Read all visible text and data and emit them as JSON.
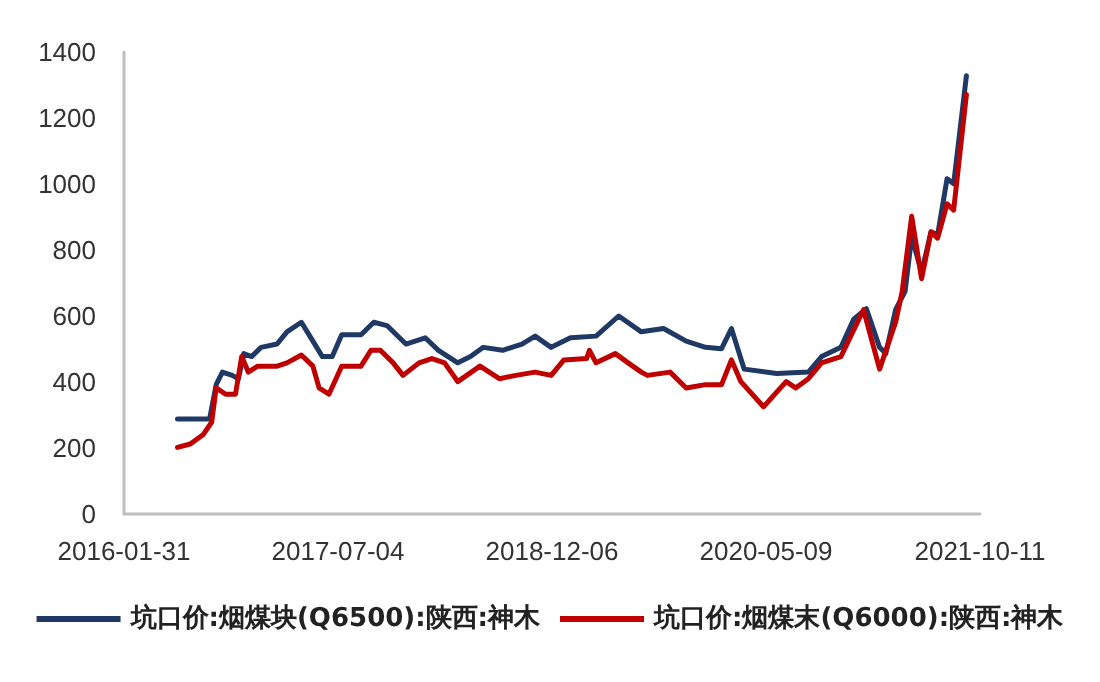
{
  "chart_data": {
    "type": "line",
    "xlim": [
      "2016-01-31",
      "2021-10-11"
    ],
    "xticks": [
      "2016-01-31",
      "2017-07-04",
      "2018-12-06",
      "2020-05-09",
      "2021-10-11"
    ],
    "ylim": [
      0,
      1400
    ],
    "yticks": [
      0,
      200,
      400,
      600,
      800,
      1000,
      1200,
      1400
    ],
    "grid": false,
    "legend": "bottom",
    "marker": "none",
    "line_style": "solid",
    "series": [
      {
        "name": "坑口价:烟煤块(Q6500):陕西:神木",
        "color": "#1f3864",
        "x": [
          "2016-06-09",
          "2016-08-26",
          "2016-09-11",
          "2016-09-26",
          "2016-10-20",
          "2016-11-04",
          "2016-11-17",
          "2016-12-06",
          "2016-12-29",
          "2017-02-06",
          "2017-03-02",
          "2017-04-06",
          "2017-05-04",
          "2017-05-27",
          "2017-06-20",
          "2017-07-13",
          "2017-08-29",
          "2017-09-29",
          "2017-10-31",
          "2017-12-16",
          "2018-02-01",
          "2018-03-05",
          "2018-04-21",
          "2018-05-22",
          "2018-06-22",
          "2018-08-08",
          "2018-09-24",
          "2018-10-26",
          "2018-12-04",
          "2019-01-20",
          "2019-03-23",
          "2019-05-17",
          "2019-07-11",
          "2019-09-03",
          "2019-10-28",
          "2019-12-14",
          "2020-01-22",
          "2020-02-15",
          "2020-03-17",
          "2020-06-04",
          "2020-08-20",
          "2020-09-21",
          "2020-11-07",
          "2020-12-08",
          "2021-01-08",
          "2021-02-09",
          "2021-02-24",
          "2021-03-20",
          "2021-04-12",
          "2021-04-28",
          "2021-05-22",
          "2021-06-14",
          "2021-06-30",
          "2021-07-23",
          "2021-08-08",
          "2021-09-08"
        ],
        "values": [
          288,
          288,
          392,
          430,
          420,
          410,
          486,
          477,
          505,
          515,
          552,
          581,
          524,
          477,
          477,
          543,
          543,
          581,
          571,
          515,
          534,
          496,
          458,
          477,
          505,
          496,
          515,
          539,
          505,
          534,
          539,
          600,
          552,
          562,
          524,
          505,
          501,
          562,
          439,
          426,
          430,
          477,
          505,
          590,
          622,
          505,
          486,
          619,
          675,
          840,
          732,
          855,
          846,
          1016,
          1001,
          1328
        ]
      },
      {
        "name": "坑口价:烟煤末(Q6000):陕西:神木",
        "color": "#c00000",
        "x": [
          "2016-06-09",
          "2016-07-10",
          "2016-08-10",
          "2016-08-31",
          "2016-09-11",
          "2016-10-04",
          "2016-10-28",
          "2016-11-12",
          "2016-11-28",
          "2016-12-21",
          "2017-02-06",
          "2017-03-02",
          "2017-04-06",
          "2017-05-04",
          "2017-05-19",
          "2017-06-12",
          "2017-07-13",
          "2017-08-29",
          "2017-09-22",
          "2017-10-15",
          "2017-11-15",
          "2017-12-09",
          "2018-01-17",
          "2018-02-17",
          "2018-03-20",
          "2018-04-21",
          "2018-06-14",
          "2018-07-31",
          "2018-09-09",
          "2018-10-26",
          "2018-12-04",
          "2019-01-04",
          "2019-02-28",
          "2019-03-07",
          "2019-03-23",
          "2019-05-09",
          "2019-06-09",
          "2019-07-11",
          "2019-07-26",
          "2019-09-19",
          "2019-10-28",
          "2019-12-14",
          "2020-01-22",
          "2020-02-15",
          "2020-03-09",
          "2020-05-03",
          "2020-06-27",
          "2020-07-20",
          "2020-08-20",
          "2020-09-21",
          "2020-11-07",
          "2021-01-01",
          "2021-02-09",
          "2021-03-20",
          "2021-04-05",
          "2021-04-28",
          "2021-05-22",
          "2021-06-14",
          "2021-06-30",
          "2021-07-23",
          "2021-08-08",
          "2021-09-08"
        ],
        "values": [
          202,
          212,
          240,
          278,
          382,
          363,
          363,
          477,
          430,
          448,
          448,
          458,
          482,
          448,
          382,
          363,
          448,
          448,
          496,
          496,
          458,
          420,
          458,
          471,
          458,
          401,
          448,
          410,
          420,
          430,
          420,
          467,
          471,
          496,
          458,
          486,
          458,
          430,
          420,
          430,
          382,
          392,
          392,
          467,
          401,
          325,
          401,
          382,
          410,
          458,
          477,
          619,
          439,
          581,
          675,
          902,
          713,
          855,
          836,
          940,
          921,
          1271
        ]
      }
    ]
  }
}
